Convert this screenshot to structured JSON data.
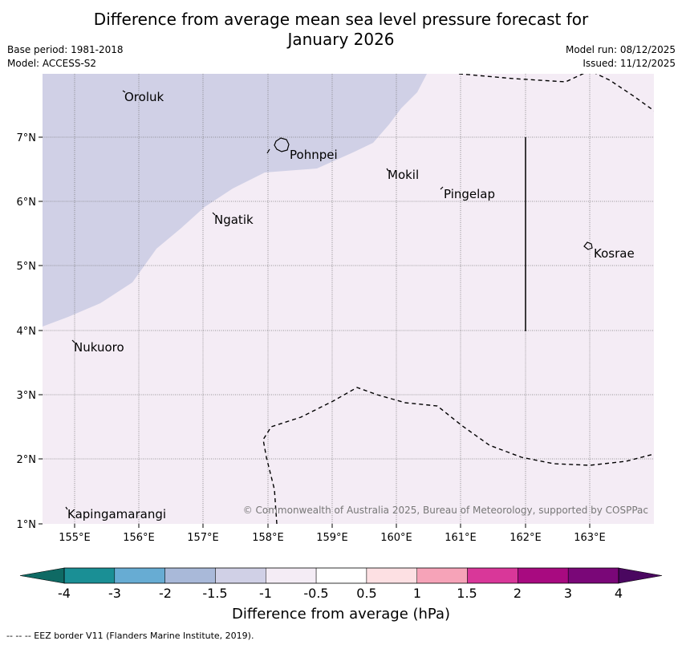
{
  "title_line1": "Difference from average mean sea level pressure forecast for",
  "title_line2": "January 2026",
  "base_period": "Base period: 1981-2018",
  "model": "Model: ACCESS-S2",
  "model_run": "Model run: 08/12/2025",
  "issued": "Issued: 11/12/2025",
  "copyright": "© Commonwealth of Australia 2025, Bureau of Meteorology, supported by COSPPac",
  "colorbar": {
    "label": "Difference from average (hPa)",
    "ticks": [
      "-4",
      "-3",
      "-2",
      "-1.5",
      "-1",
      "-0.5",
      "0.5",
      "1",
      "1.5",
      "2",
      "3",
      "4"
    ],
    "colors": [
      "#1a8f95",
      "#67acd3",
      "#a9b9d9",
      "#d0d0e6",
      "#f4ecf5",
      "#ffffff",
      "#fde0e3",
      "#f6a3b8",
      "#d93799",
      "#a80a80",
      "#7a0778"
    ],
    "extend_low": "#0f6a64",
    "extend_high": "#4a0760"
  },
  "lon_labels": [
    "155°E",
    "156°E",
    "157°E",
    "158°E",
    "159°E",
    "160°E",
    "161°E",
    "162°E",
    "163°E"
  ],
  "lat_labels": [
    "7°N",
    "6°N",
    "5°N",
    "4°N",
    "3°N",
    "2°N",
    "1°N"
  ],
  "islands": [
    "Oroluk",
    "Pohnpei",
    "Mokil",
    "Pingelap",
    "Ngatik",
    "Kosrae",
    "Nukuoro",
    "Kapingamarangi"
  ],
  "field_colors": {
    "lower": "#d0d0e6",
    "upper": "#f4ecf5"
  },
  "footnote": "--  --  -- EEZ border V11 (Flanders Marine Institute, 2019)."
}
